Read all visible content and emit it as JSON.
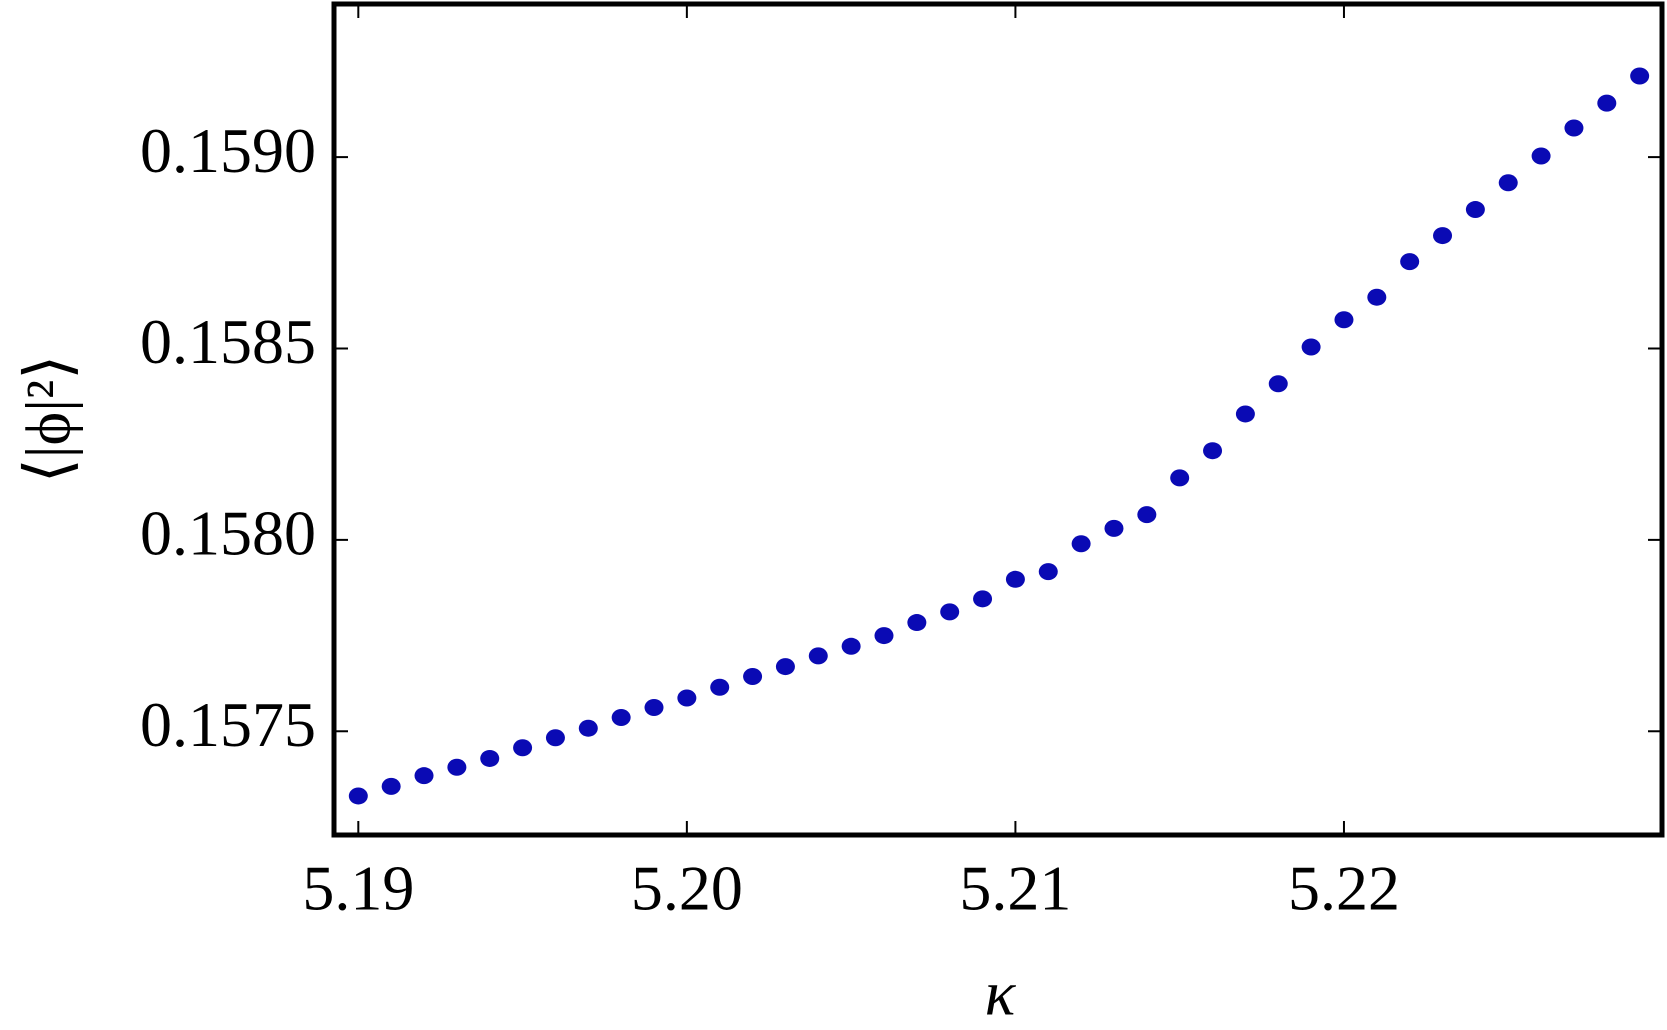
{
  "chart_data": {
    "type": "scatter",
    "x_label": "κ",
    "y_label": "⟨|ϕ|²⟩",
    "series": [
      {
        "color": "#0a0ab4",
        "x": [
          5.19,
          5.191,
          5.192,
          5.193,
          5.194,
          5.195,
          5.196,
          5.197,
          5.198,
          5.199,
          5.2,
          5.201,
          5.202,
          5.203,
          5.204,
          5.205,
          5.206,
          5.207,
          5.208,
          5.209,
          5.21,
          5.211,
          5.212,
          5.213,
          5.214,
          5.215,
          5.216,
          5.217,
          5.218,
          5.219,
          5.22,
          5.221,
          5.222,
          5.223,
          5.224,
          5.225,
          5.226,
          5.227,
          5.228,
          5.229
        ],
        "values": [
          0.157331,
          0.157356,
          0.157384,
          0.157406,
          0.157429,
          0.157457,
          0.157483,
          0.157508,
          0.157536,
          0.157562,
          0.157587,
          0.157615,
          0.157643,
          0.157669,
          0.157697,
          0.157722,
          0.15775,
          0.157784,
          0.157812,
          0.157846,
          0.157897,
          0.157917,
          0.15799,
          0.15803,
          0.158066,
          0.158162,
          0.158233,
          0.158329,
          0.158408,
          0.158504,
          0.158575,
          0.158634,
          0.158727,
          0.158795,
          0.158863,
          0.158933,
          0.159003,
          0.159076,
          0.159141,
          0.159212
        ]
      }
    ],
    "xlim": [
      5.18926,
      5.22968
    ],
    "ylim": [
      0.157229,
      0.1594
    ],
    "xticks": [
      5.19,
      {
        "value": 5.2,
        "label": "5.20"
      },
      5.21,
      5.22
    ],
    "yticks": [
      0.1575,
      {
        "value": 0.158,
        "label": "0.1580"
      },
      0.1585,
      {
        "value": 0.159,
        "label": "0.1590"
      }
    ],
    "grid": false
  }
}
